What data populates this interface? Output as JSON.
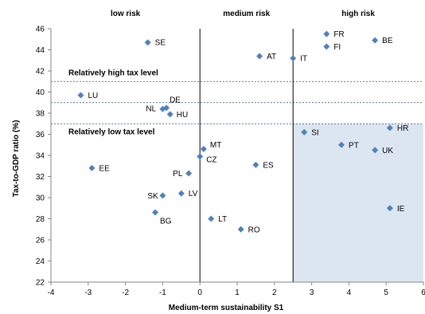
{
  "chart_data": {
    "type": "scatter",
    "xlabel": "Medium-term sustainability S1",
    "ylabel": "Tax-to-GDP ratio (%)",
    "xlim": [
      -4,
      6
    ],
    "ylim": [
      22,
      46
    ],
    "xticks": [
      -4,
      -3,
      -2,
      -1,
      0,
      1,
      2,
      3,
      4,
      5,
      6
    ],
    "yticks": [
      22,
      24,
      26,
      28,
      30,
      32,
      34,
      36,
      38,
      40,
      42,
      44,
      46
    ],
    "xtick_labels": [
      "-4",
      "-3",
      "-2",
      "-1",
      "0",
      "1",
      "2",
      "3",
      "4",
      "5",
      "6"
    ],
    "ytick_labels": [
      "22",
      "24",
      "26",
      "28",
      "30",
      "32",
      "34",
      "36",
      "38",
      "40",
      "42",
      "44",
      "46"
    ],
    "grid": false,
    "marker_color": "#4F81BD",
    "highlight_region_color": "#DCE6F1",
    "risk_thresholds_x": [
      0,
      2.5
    ],
    "tax_thresholds_y": [
      41,
      39,
      37
    ],
    "zones": [
      {
        "label": "low risk",
        "x": -2
      },
      {
        "label": "medium risk",
        "x": 1.25
      },
      {
        "label": "high risk",
        "x": 4.25
      }
    ],
    "bands": [
      {
        "label": "Relatively high tax level"
      },
      {
        "label": "Relatively low tax level"
      }
    ],
    "points": [
      {
        "label": "SE",
        "x": -1.4,
        "y": 44.7
      },
      {
        "label": "AT",
        "x": 1.6,
        "y": 43.4
      },
      {
        "label": "IT",
        "x": 2.5,
        "y": 43.2
      },
      {
        "label": "FR",
        "x": 3.4,
        "y": 45.5
      },
      {
        "label": "FI",
        "x": 3.4,
        "y": 44.3
      },
      {
        "label": "BE",
        "x": 4.7,
        "y": 44.9
      },
      {
        "label": "LU",
        "x": -3.2,
        "y": 39.7
      },
      {
        "label": "DE",
        "x": -0.9,
        "y": 38.5
      },
      {
        "label": "NL",
        "x": -1.0,
        "y": 38.4
      },
      {
        "label": "HU",
        "x": -0.8,
        "y": 37.9
      },
      {
        "label": "SI",
        "x": 2.8,
        "y": 36.2
      },
      {
        "label": "HR",
        "x": 5.1,
        "y": 36.6
      },
      {
        "label": "PT",
        "x": 3.8,
        "y": 35.0
      },
      {
        "label": "UK",
        "x": 4.7,
        "y": 34.5
      },
      {
        "label": "MT",
        "x": 0.1,
        "y": 34.6
      },
      {
        "label": "CZ",
        "x": 0.0,
        "y": 33.9
      },
      {
        "label": "EE",
        "x": -2.9,
        "y": 32.8
      },
      {
        "label": "PL",
        "x": -0.3,
        "y": 32.3
      },
      {
        "label": "ES",
        "x": 1.5,
        "y": 33.1
      },
      {
        "label": "SK",
        "x": -1.0,
        "y": 30.2
      },
      {
        "label": "LV",
        "x": -0.5,
        "y": 30.4
      },
      {
        "label": "BG",
        "x": -1.2,
        "y": 28.6
      },
      {
        "label": "LT",
        "x": 0.3,
        "y": 28.0
      },
      {
        "label": "RO",
        "x": 1.1,
        "y": 27.0
      },
      {
        "label": "IE",
        "x": 5.1,
        "y": 29.0
      }
    ]
  }
}
